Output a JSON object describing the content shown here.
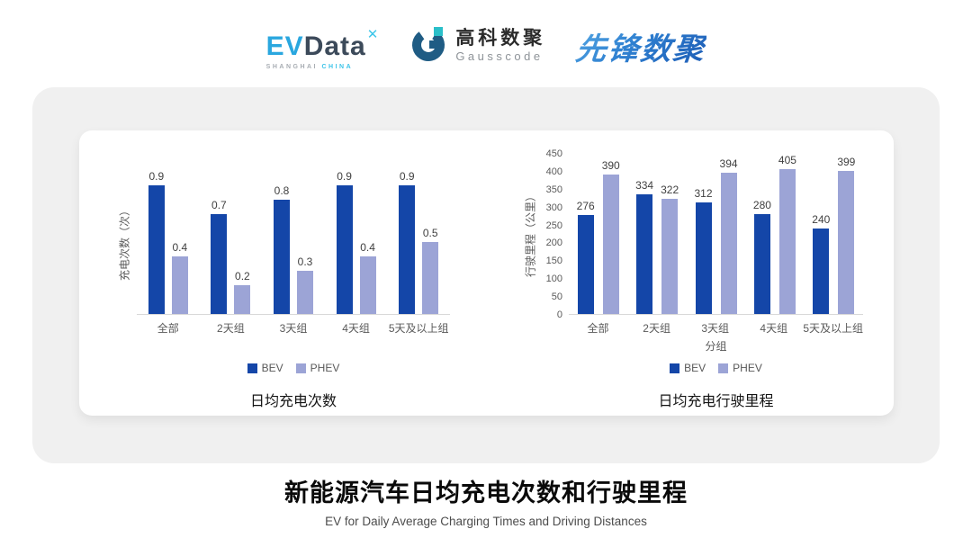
{
  "header": {
    "evdata_logo": {
      "ev": "EV",
      "data": "Data",
      "star": "✕",
      "sub_left": "SHANGHAI",
      "sub_right": "CHINA"
    },
    "gausscode_logo": {
      "cn": "高科数聚",
      "en": "Gausscode"
    },
    "pioneer_logo": {
      "text": "先锋数聚"
    }
  },
  "colors": {
    "bev": "#1446A8",
    "phev": "#9CA4D6",
    "accent_cyan": "#2AA7DF",
    "dark_slate": "#3C4A5A",
    "card_gray": "#F0F0F0"
  },
  "chart_data": [
    {
      "type": "bar",
      "title": "日均充电次数",
      "ylabel": "充电次数（次）",
      "xlabel": "",
      "categories": [
        "全部",
        "2天组",
        "3天组",
        "4天组",
        "5天及以上组"
      ],
      "series": [
        {
          "name": "BEV",
          "color": "#1446A8",
          "values": [
            0.9,
            0.7,
            0.8,
            0.9,
            0.9
          ]
        },
        {
          "name": "PHEV",
          "color": "#9CA4D6",
          "values": [
            0.4,
            0.2,
            0.3,
            0.4,
            0.5
          ]
        }
      ],
      "ylim": [
        0,
        1.0
      ],
      "yticks": [],
      "grid": false,
      "legend_position": "bottom"
    },
    {
      "type": "bar",
      "title": "日均充电行驶里程",
      "ylabel": "行驶里程（公里）",
      "xlabel": "分组",
      "categories": [
        "全部",
        "2天组",
        "3天组",
        "4天组",
        "5天及以上组"
      ],
      "series": [
        {
          "name": "BEV",
          "color": "#1446A8",
          "values": [
            276,
            334,
            312,
            280,
            240
          ]
        },
        {
          "name": "PHEV",
          "color": "#9CA4D6",
          "values": [
            390,
            322,
            394,
            405,
            399
          ]
        }
      ],
      "ylim": [
        0,
        450
      ],
      "yticks": [
        0,
        50,
        100,
        150,
        200,
        250,
        300,
        350,
        400,
        450
      ],
      "grid": false,
      "legend_position": "bottom"
    }
  ],
  "footer": {
    "title": "新能源汽车日均充电次数和行驶里程",
    "subtitle": "EV for Daily Average Charging Times and Driving Distances"
  }
}
